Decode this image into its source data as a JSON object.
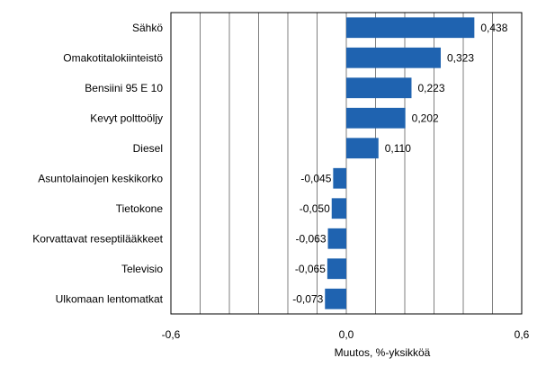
{
  "chart_data": {
    "type": "bar",
    "orientation": "horizontal",
    "categories": [
      "Sähkö",
      "Omakotitalokiinteistö",
      "Bensiini 95 E 10",
      "Kevyt polttoöljy",
      "Diesel",
      "Asuntolainojen keskikorko",
      "Tietokone",
      "Korvattavat reseptilääkkeet",
      "Televisio",
      "Ulkomaan lentomatkat"
    ],
    "values": [
      0.438,
      0.323,
      0.223,
      0.202,
      0.11,
      -0.045,
      -0.05,
      -0.063,
      -0.065,
      -0.073
    ],
    "value_labels": [
      "0,438",
      "0,323",
      "0,223",
      "0,202",
      "0,110",
      "-0,045",
      "-0,050",
      "-0,063",
      "-0,065",
      "-0,073"
    ],
    "xlabel": "Muutos, %-yksikköä",
    "xlim": [
      -0.6,
      0.6
    ],
    "xticks": [
      -0.6,
      0.0,
      0.6
    ],
    "xtick_labels": [
      "-0,6",
      "0,0",
      "0,6"
    ],
    "grid": true,
    "bar_color": "#1f63b0",
    "grid_color": "#7f7f7f",
    "frame_color": "#000000"
  }
}
